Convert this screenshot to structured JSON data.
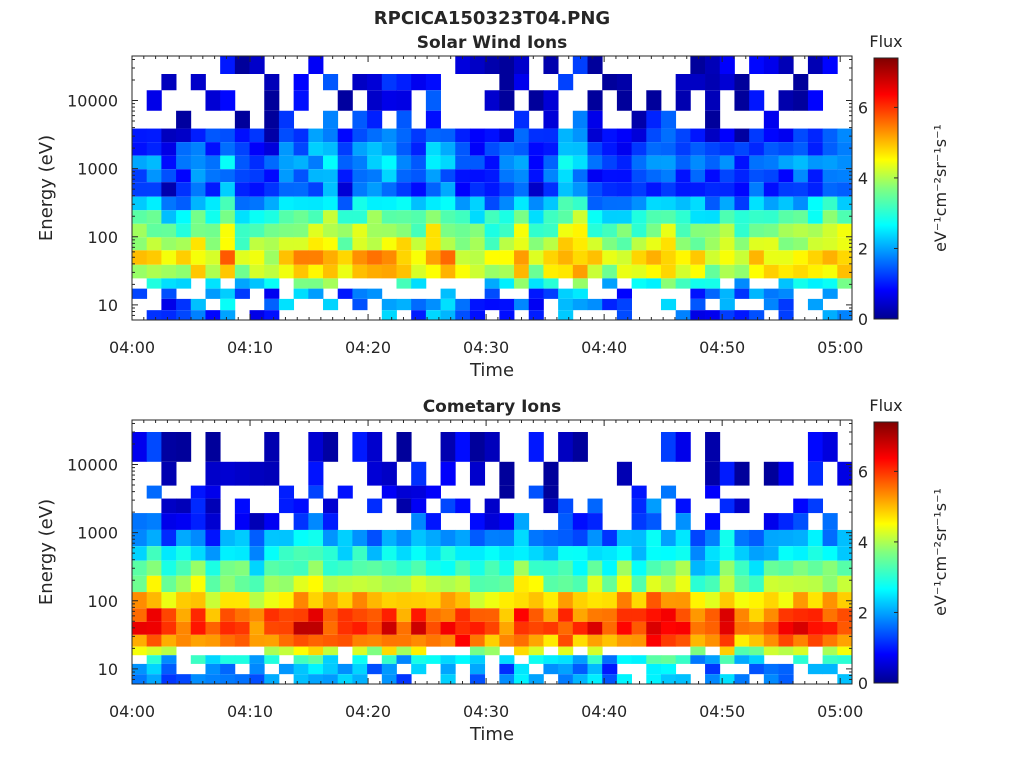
{
  "figure": {
    "title": "RPCICA150323T04.PNG"
  },
  "chart_data": [
    {
      "type": "heatmap",
      "title": "Solar Wind Ions",
      "xlabel": "Time",
      "ylabel": "Energy (eV)",
      "x_range": [
        "04:00",
        "05:01"
      ],
      "x_ticks": [
        "04:00",
        "04:10",
        "04:20",
        "04:30",
        "04:40",
        "04:50",
        "05:00"
      ],
      "y_scale": "log",
      "y_range": [
        6,
        45000
      ],
      "y_ticks": [
        "10",
        "100",
        "1000",
        "10000"
      ],
      "colorbar": {
        "label": "Flux",
        "units": "eV⁻¹cm⁻²sr⁻¹s⁻¹",
        "range": [
          0,
          7.4
        ],
        "ticks": [
          "0",
          "2",
          "4",
          "6"
        ],
        "colormap": "jet"
      },
      "profile": [
        {
          "energy": 30000,
          "flux": 0.6
        },
        {
          "energy": 20000,
          "flux": 0.6
        },
        {
          "energy": 10000,
          "flux": 0.6
        },
        {
          "energy": 5000,
          "flux": 0.9
        },
        {
          "energy": 3000,
          "flux": 1.3
        },
        {
          "energy": 2000,
          "flux": 1.6
        },
        {
          "energy": 1200,
          "flux": 1.9
        },
        {
          "energy": 800,
          "flux": 1.6
        },
        {
          "energy": 500,
          "flux": 1.4
        },
        {
          "energy": 300,
          "flux": 2.4
        },
        {
          "energy": 200,
          "flux": 3.3
        },
        {
          "energy": 120,
          "flux": 3.8
        },
        {
          "energy": 80,
          "flux": 4.2
        },
        {
          "energy": 50,
          "flux": 4.9
        },
        {
          "energy": 30,
          "flux": 4.5
        },
        {
          "energy": 20,
          "flux": 3.0
        },
        {
          "energy": 15,
          "flux": 1.8
        },
        {
          "energy": 10,
          "flux": 1.8
        },
        {
          "energy": 7,
          "flux": 1.5
        }
      ],
      "empty_below_eV": 6,
      "sparse_above_eV": 5000
    },
    {
      "type": "heatmap",
      "title": "Cometary Ions",
      "xlabel": "Time",
      "ylabel": "Energy (eV)",
      "x_range": [
        "04:00",
        "05:01"
      ],
      "x_ticks": [
        "04:00",
        "04:10",
        "04:20",
        "04:30",
        "04:40",
        "04:50",
        "05:00"
      ],
      "y_scale": "log",
      "y_range": [
        6,
        45000
      ],
      "y_ticks": [
        "10",
        "100",
        "1000",
        "10000"
      ],
      "colorbar": {
        "label": "Flux",
        "units": "eV⁻¹cm⁻²sr⁻¹s⁻¹",
        "range": [
          0,
          7.4
        ],
        "ticks": [
          "0",
          "2",
          "4",
          "6"
        ],
        "colormap": "jet"
      },
      "profile": [
        {
          "energy": 20000,
          "flux": 0.4
        },
        {
          "energy": 6000,
          "flux": 0.5
        },
        {
          "energy": 4000,
          "flux": 0.8
        },
        {
          "energy": 2500,
          "flux": 1.0
        },
        {
          "energy": 1500,
          "flux": 1.2
        },
        {
          "energy": 800,
          "flux": 2.0
        },
        {
          "energy": 500,
          "flux": 2.6
        },
        {
          "energy": 300,
          "flux": 3.2
        },
        {
          "energy": 180,
          "flux": 3.9
        },
        {
          "energy": 100,
          "flux": 4.9
        },
        {
          "energy": 60,
          "flux": 5.8
        },
        {
          "energy": 40,
          "flux": 6.1
        },
        {
          "energy": 25,
          "flux": 5.5
        },
        {
          "energy": 18,
          "flux": 4.2
        },
        {
          "energy": 14,
          "flux": 2.6
        },
        {
          "energy": 10,
          "flux": 2.0
        },
        {
          "energy": 7,
          "flux": 2.0
        }
      ],
      "empty_below_eV": 6,
      "sparse_above_eV": 1200
    }
  ]
}
